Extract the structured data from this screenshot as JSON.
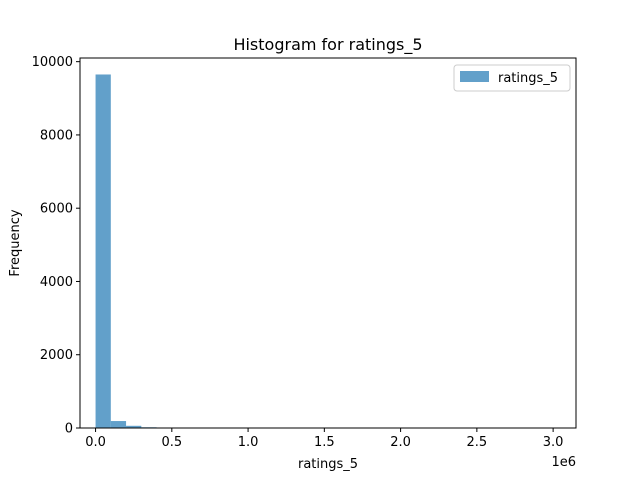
{
  "chart_data": {
    "type": "bar",
    "title": "Histogram for ratings_5",
    "xlabel": "ratings_5",
    "ylabel": "Frequency",
    "x_offset_label": "1e6",
    "x_scale": 1000000,
    "xlim": [
      -102000,
      3150000
    ],
    "ylim": [
      0,
      10100
    ],
    "x_ticks": [
      0,
      500000,
      1000000,
      1500000,
      2000000,
      2500000,
      3000000
    ],
    "x_tick_labels": [
      "0.0",
      "0.5",
      "1.0",
      "1.5",
      "2.0",
      "2.5",
      "3.0"
    ],
    "y_ticks": [
      0,
      2000,
      4000,
      6000,
      8000,
      10000
    ],
    "y_tick_labels": [
      "0",
      "2000",
      "4000",
      "6000",
      "8000",
      "10000"
    ],
    "bin_start": 0,
    "bin_width": 100000,
    "values": [
      9650,
      190,
      60,
      20,
      10,
      5,
      3,
      2,
      1,
      1,
      1,
      0,
      0,
      0,
      0,
      0,
      0,
      0,
      0,
      0,
      0,
      0,
      0,
      0,
      0,
      0,
      0,
      0,
      0,
      1
    ],
    "series": [
      {
        "name": "ratings_5",
        "color": "#1f77b4",
        "alpha": 0.7
      }
    ],
    "legend": {
      "placement": "top-right",
      "entries": [
        "ratings_5"
      ]
    },
    "grid": false
  }
}
